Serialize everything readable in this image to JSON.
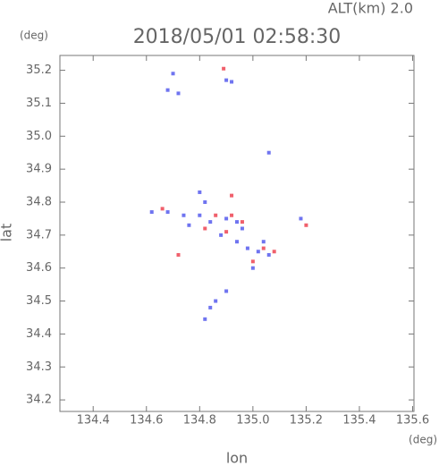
{
  "chart_data": {
    "type": "scatter",
    "title": "2018/05/01 02:58:30",
    "subtitle": "ALT(km) 2.0",
    "x_label": "lon",
    "y_label": "lat",
    "x_unit": "(deg)",
    "y_unit": "(deg)",
    "xlim": [
      134.275,
      135.605
    ],
    "ylim": [
      34.165,
      35.245
    ],
    "xticks": [
      134.4,
      134.6,
      134.8,
      {
        "value": 135,
        "label": "135.0"
      },
      135.2,
      135.4,
      135.6
    ],
    "yticks": [
      34.2,
      34.3,
      34.4,
      34.5,
      34.6,
      34.7,
      34.8,
      34.9,
      {
        "value": 35,
        "label": "35.0"
      },
      35.1,
      35.2
    ],
    "grid": false,
    "series": [
      {
        "color": "#6f74f0",
        "x": [
          134.7,
          134.68,
          134.72,
          134.9,
          134.92,
          135.06,
          134.8,
          134.82,
          134.62,
          134.68,
          134.74,
          134.8,
          134.84,
          134.9,
          134.94,
          134.96,
          134.88,
          134.94,
          134.98,
          135.02,
          135.06,
          135.0,
          134.9,
          134.86,
          134.84,
          134.82,
          135.18,
          135.04,
          134.76
        ],
        "values": [
          35.19,
          35.14,
          35.13,
          35.17,
          35.165,
          34.95,
          34.83,
          34.8,
          34.77,
          34.77,
          34.76,
          34.76,
          34.74,
          34.75,
          34.74,
          34.72,
          34.7,
          34.68,
          34.66,
          34.65,
          34.64,
          34.6,
          34.53,
          34.5,
          34.48,
          34.445,
          34.75,
          34.68,
          34.73
        ]
      },
      {
        "color": "#f0606c",
        "x": [
          134.89,
          134.92,
          134.66,
          134.82,
          134.92,
          134.96,
          135.2,
          134.72,
          135.04,
          135.08,
          135.0,
          134.9,
          134.86
        ],
        "values": [
          35.205,
          34.82,
          34.78,
          34.72,
          34.76,
          34.74,
          34.73,
          34.64,
          34.66,
          34.65,
          34.62,
          34.71,
          34.76
        ]
      }
    ]
  }
}
